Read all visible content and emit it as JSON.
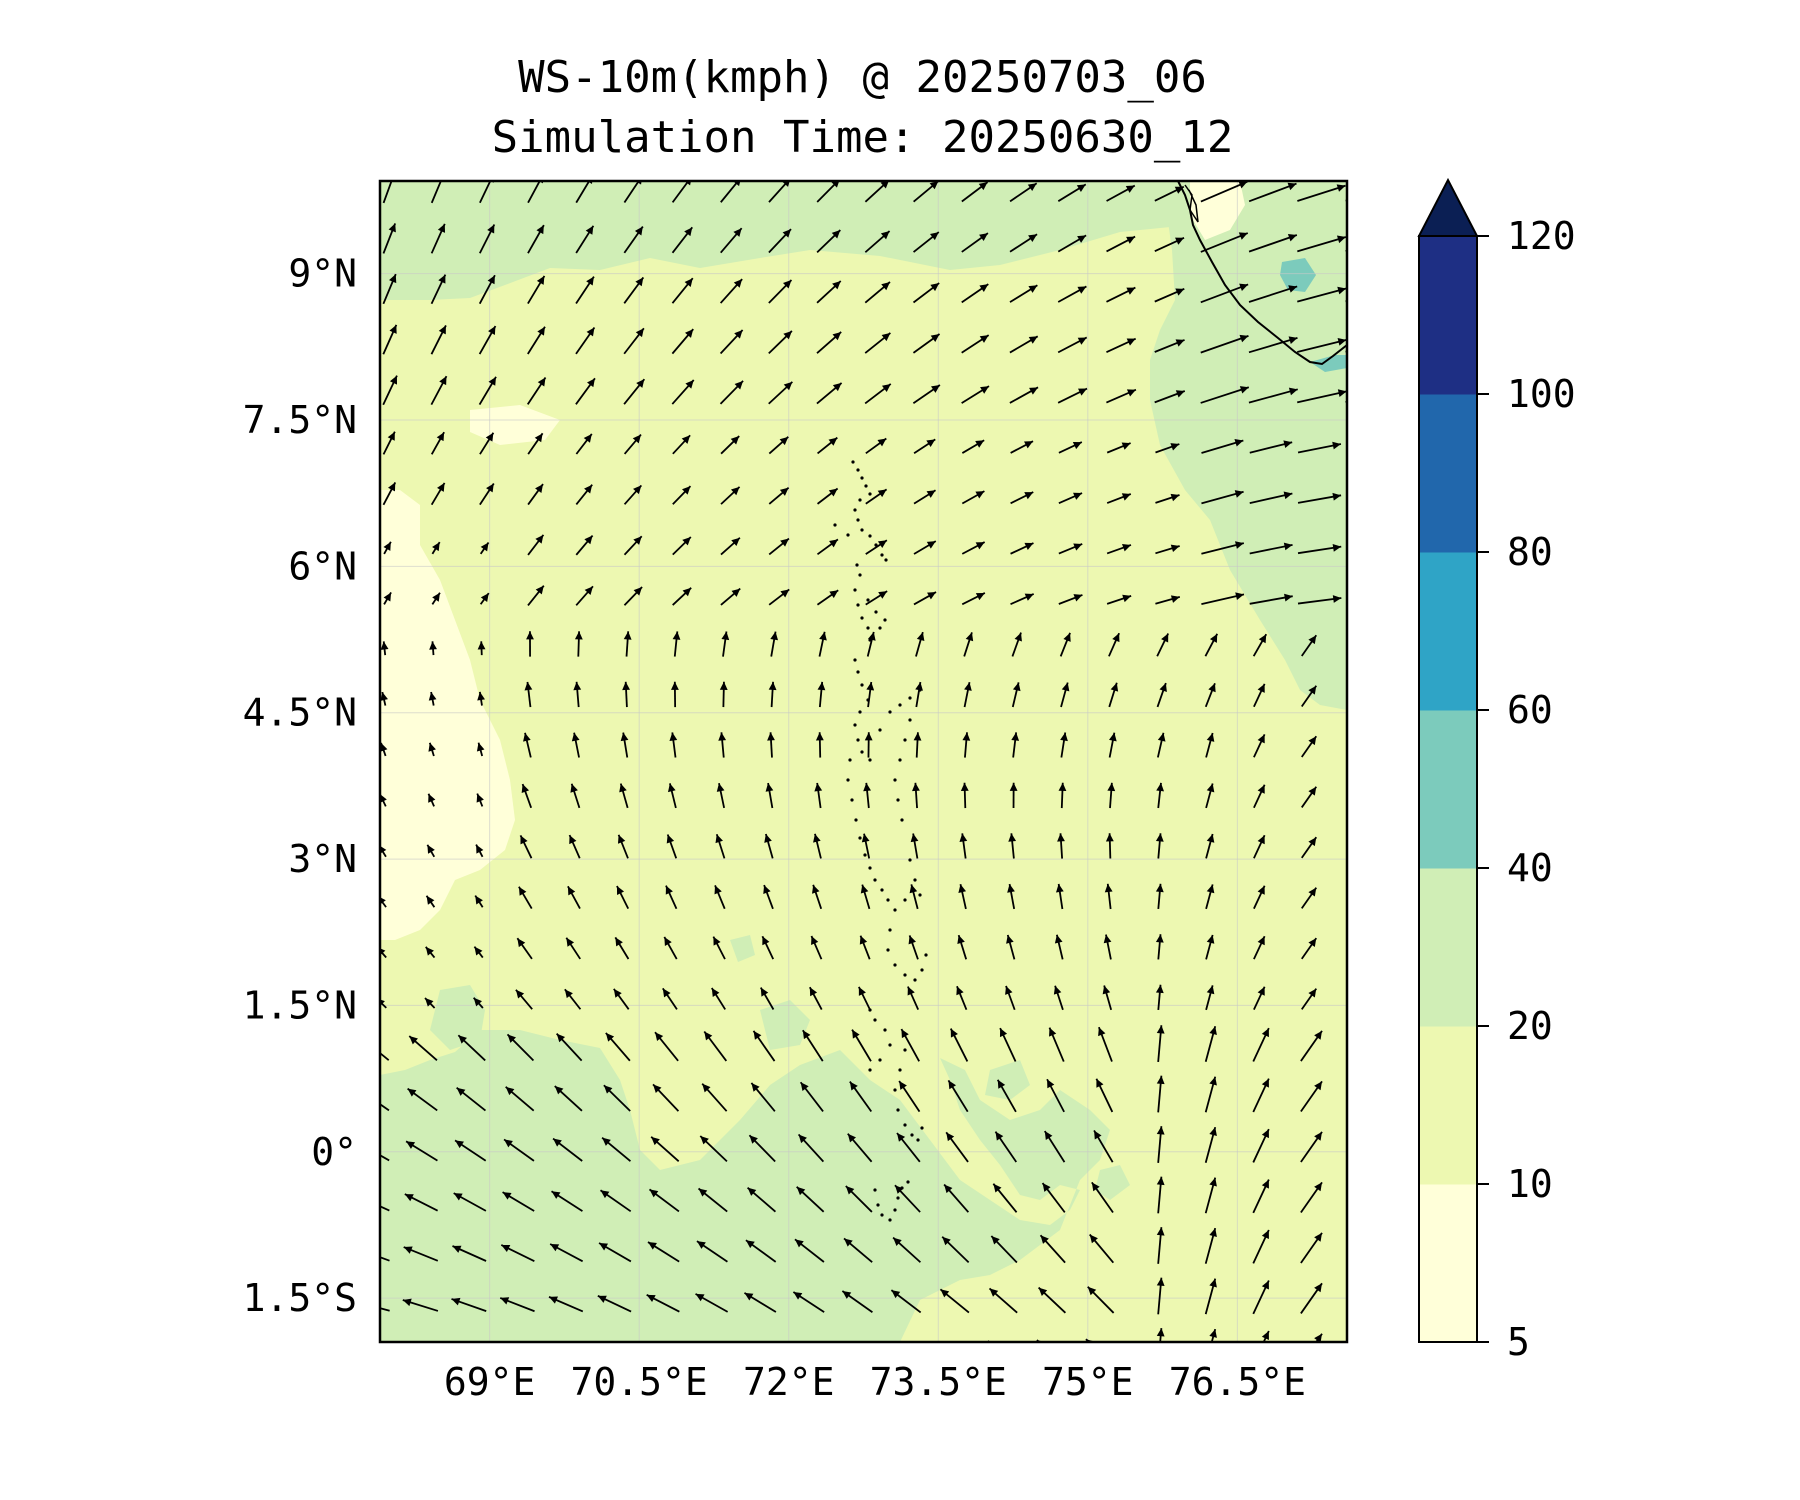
{
  "figure": {
    "title_line1": "WS-10m(kmph) @ 20250703_06",
    "title_line2": "Simulation Time: 20250630_12"
  },
  "map": {
    "lon_range": [
      67.9,
      77.6
    ],
    "lat_range": [
      -1.95,
      9.95
    ],
    "lat_labels": [
      {
        "value": 9,
        "text": "9°N"
      },
      {
        "value": 7.5,
        "text": "7.5°N"
      },
      {
        "value": 6,
        "text": "6°N"
      },
      {
        "value": 4.5,
        "text": "4.5°N"
      },
      {
        "value": 3,
        "text": "3°N"
      },
      {
        "value": 1.5,
        "text": "1.5°N"
      },
      {
        "value": 0,
        "text": "0°"
      },
      {
        "value": -1.5,
        "text": "1.5°S"
      }
    ],
    "lon_labels": [
      {
        "value": 69,
        "text": "69°E"
      },
      {
        "value": 70.5,
        "text": "70.5°E"
      },
      {
        "value": 72,
        "text": "72°E"
      },
      {
        "value": 73.5,
        "text": "73.5°E"
      },
      {
        "value": 75,
        "text": "75°E"
      },
      {
        "value": 76.5,
        "text": "76.5°E"
      }
    ],
    "gridlines": true,
    "field_levels_kmph": {
      "dominant": "10-20",
      "southwest_and_north": "20-40",
      "west_calm": "5-10",
      "sri_lanka_coast": "40-60"
    }
  },
  "colorbar": {
    "levels": [
      5,
      10,
      20,
      40,
      60,
      80,
      100,
      120
    ],
    "tick_labels": [
      "5",
      "10",
      "20",
      "40",
      "60",
      "80",
      "100",
      "120"
    ],
    "colors": [
      "#ffffd9",
      "#edf8b1",
      "#d0eeb6",
      "#7ccbbc",
      "#2fa4c6",
      "#2167ac",
      "#1e2f84"
    ],
    "extend_color": "#0b1f54",
    "extend": "max"
  },
  "colors": {
    "c5_10": "#ffffd9",
    "c10_20": "#edf8b1",
    "c20_40": "#d0eeb6",
    "c40_60": "#7ccbbc",
    "grid": "#c8c8c8"
  }
}
